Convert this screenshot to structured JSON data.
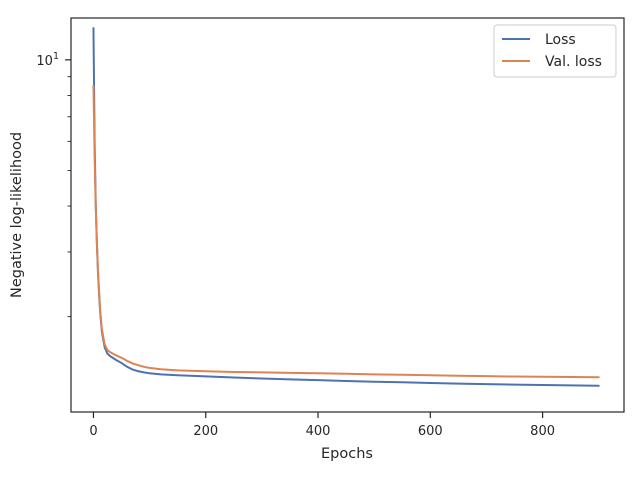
{
  "chart_data": {
    "type": "line",
    "title": "",
    "xlabel": "Epochs",
    "ylabel": "Negative log-likelihood",
    "xlim": [
      -40,
      945
    ],
    "ylim": [
      1.1,
      13.0
    ],
    "yscale": "log",
    "grid": false,
    "legend_position": "top-right",
    "x_ticks": [
      0,
      200,
      400,
      600,
      800
    ],
    "x_tick_labels": [
      "0",
      "200",
      "400",
      "600",
      "800"
    ],
    "y_major_ticks": [
      10
    ],
    "y_tick_base": "10",
    "y_tick_exponent": "1",
    "series": [
      {
        "name": "Loss",
        "color": "#4c72b0",
        "x": [
          0,
          2,
          4,
          6,
          8,
          10,
          12,
          15,
          20,
          25,
          30,
          40,
          50,
          60,
          70,
          80,
          90,
          100,
          120,
          150,
          200,
          250,
          300,
          350,
          400,
          450,
          500,
          550,
          600,
          650,
          700,
          750,
          800,
          850,
          900
        ],
        "y": [
          12.2,
          6.1,
          4.1,
          3.2,
          2.65,
          2.3,
          2.05,
          1.82,
          1.65,
          1.585,
          1.56,
          1.525,
          1.495,
          1.46,
          1.435,
          1.42,
          1.41,
          1.402,
          1.393,
          1.385,
          1.375,
          1.365,
          1.357,
          1.35,
          1.343,
          1.336,
          1.33,
          1.325,
          1.319,
          1.314,
          1.31,
          1.306,
          1.303,
          1.3,
          1.297
        ]
      },
      {
        "name": "Val. loss",
        "color": "#dd8452",
        "x": [
          0,
          2,
          4,
          6,
          8,
          10,
          12,
          15,
          20,
          25,
          30,
          40,
          50,
          60,
          70,
          80,
          90,
          100,
          120,
          150,
          200,
          250,
          300,
          350,
          400,
          450,
          500,
          550,
          600,
          650,
          700,
          750,
          800,
          850,
          900
        ],
        "y": [
          8.5,
          5.5,
          4.0,
          3.2,
          2.7,
          2.35,
          2.08,
          1.85,
          1.68,
          1.62,
          1.6,
          1.57,
          1.545,
          1.515,
          1.49,
          1.475,
          1.46,
          1.45,
          1.438,
          1.428,
          1.42,
          1.414,
          1.41,
          1.406,
          1.402,
          1.398,
          1.393,
          1.389,
          1.385,
          1.381,
          1.377,
          1.374,
          1.372,
          1.37,
          1.368
        ]
      }
    ]
  }
}
